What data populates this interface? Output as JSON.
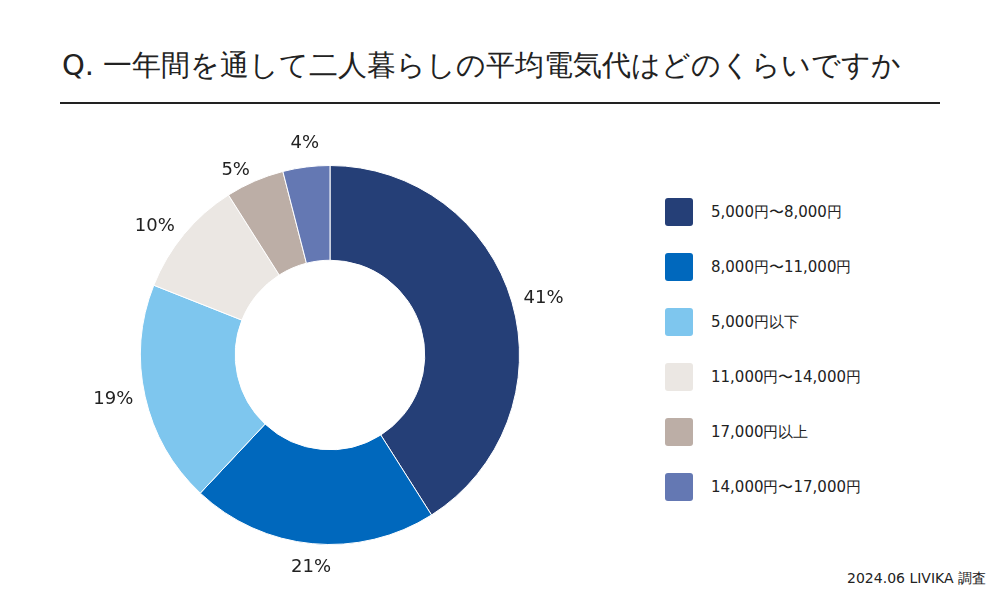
{
  "chart_data": {
    "type": "doughnut",
    "title": "Q. 一年間を通して二人暮らしの平均電気代はどのくらいですか",
    "categories": [
      "5,000円〜8,000円",
      "8,000円〜11,000円",
      "5,000円以下",
      "11,000円〜14,000円",
      "17,000円以上",
      "14,000円〜17,000円"
    ],
    "values": [
      41,
      21,
      19,
      10,
      5,
      4
    ],
    "value_labels": [
      "41%",
      "21%",
      "19%",
      "10%",
      "5%",
      "4%"
    ],
    "colors": [
      "#253f77",
      "#0068bd",
      "#7ec6ee",
      "#ebe7e3",
      "#bcaea6",
      "#6478b3"
    ],
    "data_labels": true,
    "legend": "right",
    "source": "2024.06 LIVIKA 調査"
  }
}
